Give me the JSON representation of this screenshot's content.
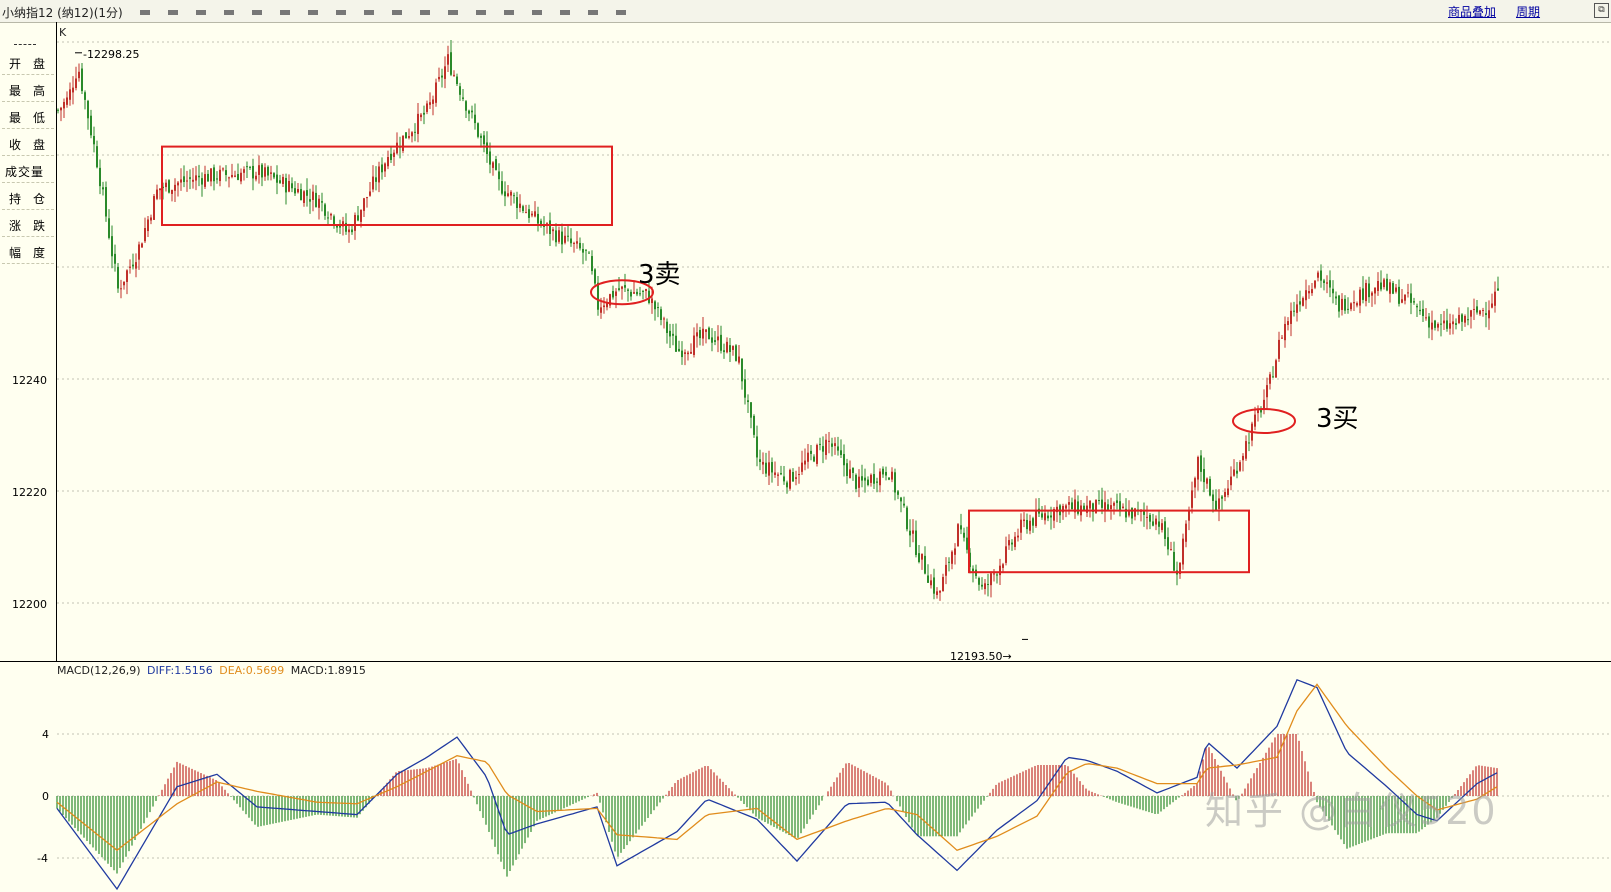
{
  "window": {
    "title": "小纳指12 (纳12)(1分)",
    "buttons": {
      "overlay": "商品叠加",
      "period": "周期"
    },
    "corner_icon": "restore-icon"
  },
  "side_panel": {
    "rows": [
      {
        "a": "开",
        "b": "盘"
      },
      {
        "a": "最",
        "b": "高"
      },
      {
        "a": "最",
        "b": "低"
      },
      {
        "a": "收",
        "b": "盘"
      },
      {
        "wide": "成交量"
      },
      {
        "a": "持",
        "b": "仓"
      },
      {
        "a": "涨",
        "b": "跌"
      },
      {
        "a": "幅",
        "b": "度"
      }
    ]
  },
  "kline": {
    "label": "K",
    "high_label": "12298.25",
    "low_label": "12193.50",
    "y_ticks": [
      "12240",
      "12220",
      "12200"
    ],
    "annotations": {
      "sell": "3卖",
      "buy": "3买"
    }
  },
  "macd": {
    "header": {
      "name": "MACD(12,26,9)",
      "diff": "DIFF:1.5156",
      "dea": "DEA:0.5699",
      "macd": "MACD:1.8915"
    },
    "y_ticks": [
      "4",
      "0",
      "-4"
    ]
  },
  "watermark": "知乎 @白仪520",
  "colors": {
    "up": "#c0302a",
    "down": "#2a8a2a",
    "diff": "#203aa0",
    "dea": "#e08c1c",
    "box": "#e02020",
    "grid": "#b0b0a0"
  },
  "chart_data": {
    "type": "candlestick",
    "timeframe": "1分",
    "price_max": 12298.25,
    "price_min": 12193.5,
    "y_ticks": [
      12240,
      12220,
      12200
    ],
    "path_points": [
      [
        0,
        12288
      ],
      [
        10,
        12290
      ],
      [
        20,
        12296
      ],
      [
        40,
        12278
      ],
      [
        60,
        12256
      ],
      [
        80,
        12263
      ],
      [
        100,
        12274
      ],
      [
        140,
        12276
      ],
      [
        200,
        12277
      ],
      [
        260,
        12272
      ],
      [
        290,
        12266
      ],
      [
        330,
        12280
      ],
      [
        370,
        12288
      ],
      [
        390,
        12297
      ],
      [
        420,
        12284
      ],
      [
        440,
        12275
      ],
      [
        480,
        12268
      ],
      [
        530,
        12262
      ],
      [
        540,
        12253
      ],
      [
        560,
        12256
      ],
      [
        590,
        12255
      ],
      [
        620,
        12245
      ],
      [
        650,
        12248
      ],
      [
        680,
        12244
      ],
      [
        700,
        12225
      ],
      [
        730,
        12222
      ],
      [
        770,
        12229
      ],
      [
        800,
        12221
      ],
      [
        830,
        12224
      ],
      [
        860,
        12209
      ],
      [
        880,
        12201
      ],
      [
        900,
        12213
      ],
      [
        925,
        12202
      ],
      [
        945,
        12208
      ],
      [
        965,
        12214
      ],
      [
        1000,
        12217
      ],
      [
        1050,
        12217
      ],
      [
        1100,
        12215
      ],
      [
        1120,
        12205
      ],
      [
        1140,
        12225
      ],
      [
        1160,
        12217
      ],
      [
        1180,
        12225
      ],
      [
        1210,
        12238
      ],
      [
        1225,
        12249
      ],
      [
        1240,
        12254
      ],
      [
        1260,
        12259
      ],
      [
        1280,
        12253
      ],
      [
        1320,
        12257
      ],
      [
        1350,
        12254
      ],
      [
        1380,
        12249
      ],
      [
        1400,
        12250
      ],
      [
        1430,
        12253
      ],
      [
        1440,
        12256
      ]
    ],
    "macd_points": [
      [
        0,
        -0.8,
        -0.4
      ],
      [
        60,
        -6.0,
        -3.5
      ],
      [
        120,
        0.6,
        -0.5
      ],
      [
        160,
        1.4,
        0.9
      ],
      [
        200,
        -0.7,
        0.3
      ],
      [
        260,
        -1.0,
        -0.4
      ],
      [
        300,
        -1.2,
        -0.5
      ],
      [
        340,
        1.4,
        0.6
      ],
      [
        370,
        2.5,
        1.6
      ],
      [
        400,
        3.8,
        2.6
      ],
      [
        430,
        1.2,
        2.2
      ],
      [
        450,
        -2.5,
        0.1
      ],
      [
        480,
        -1.8,
        -1.0
      ],
      [
        540,
        -0.7,
        -0.8
      ],
      [
        560,
        -4.5,
        -2.5
      ],
      [
        620,
        -2.3,
        -2.8
      ],
      [
        650,
        -0.2,
        -1.2
      ],
      [
        700,
        -1.5,
        -0.8
      ],
      [
        740,
        -4.2,
        -2.8
      ],
      [
        790,
        -0.5,
        -1.6
      ],
      [
        830,
        -0.4,
        -0.8
      ],
      [
        860,
        -2.5,
        -1.2
      ],
      [
        900,
        -4.8,
        -3.5
      ],
      [
        940,
        -2.2,
        -2.6
      ],
      [
        980,
        -0.3,
        -1.3
      ],
      [
        1010,
        2.5,
        1.5
      ],
      [
        1030,
        2.3,
        2.1
      ],
      [
        1060,
        1.6,
        1.8
      ],
      [
        1100,
        0.2,
        0.8
      ],
      [
        1140,
        1.2,
        0.8
      ],
      [
        1150,
        3.5,
        1.8
      ],
      [
        1180,
        1.8,
        2.0
      ],
      [
        1220,
        4.5,
        2.5
      ],
      [
        1240,
        7.5,
        5.5
      ],
      [
        1260,
        7.0,
        7.2
      ],
      [
        1290,
        2.8,
        4.5
      ],
      [
        1330,
        0.6,
        1.8
      ],
      [
        1360,
        -1.2,
        0.0
      ],
      [
        1380,
        -1.6,
        -0.9
      ],
      [
        1420,
        0.8,
        -0.2
      ],
      [
        1440,
        1.5,
        0.6
      ]
    ],
    "macd_ylim": [
      -4,
      4
    ],
    "zones": [
      {
        "x_from": 105,
        "x_to": 555,
        "price_high": 12281.5,
        "price_low": 12267.5
      },
      {
        "x_from": 912,
        "x_to": 1192,
        "price_high": 12216.5,
        "price_low": 12205.5
      }
    ],
    "circles": [
      {
        "label": "3卖",
        "x": 565,
        "price": 12255.5
      },
      {
        "label": "3买",
        "x": 1207,
        "price": 12232.5
      }
    ]
  }
}
